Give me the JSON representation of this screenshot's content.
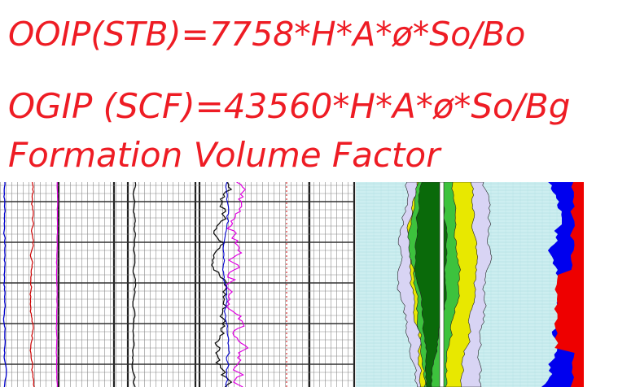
{
  "text": {
    "ooip": "OOIP(STB)=7758*H*A*ø*So/Bo",
    "ogip": "OGIP (SCF)=43560*H*A*ø*So/Bg",
    "fvf": "Formation Volume Factor"
  },
  "colors": {
    "text_red": "#ee1c24",
    "track_blue": "#0000cc",
    "track_red": "#cc0000",
    "track_magenta": "#e000e0",
    "track_black": "#111111",
    "shade_cyan": "#cdeef0",
    "shade_green_dark": "#0a6a0a",
    "shade_green": "#3dc23d",
    "shade_yellow": "#e8e800",
    "shade_lavender": "#d8d4f4",
    "fill_blue": "#0000ee",
    "fill_red": "#ee0000"
  }
}
